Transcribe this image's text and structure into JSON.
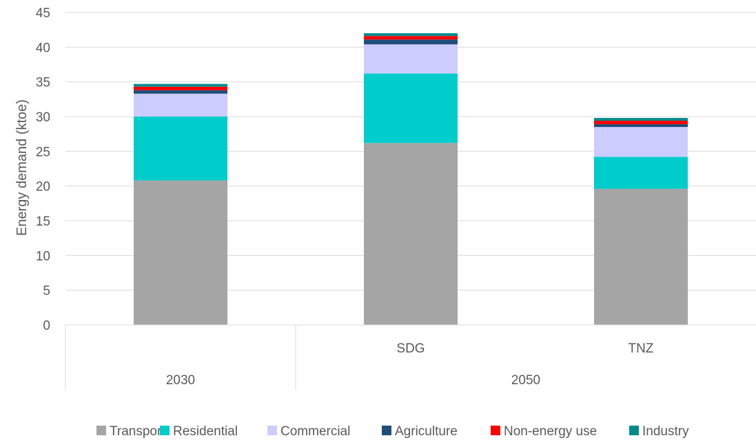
{
  "chart_data": {
    "type": "bar",
    "stacked": true,
    "ylabel": "Energy demand (ktoe)",
    "ylim": [
      0,
      45
    ],
    "yticks": [
      "0",
      "5",
      "10",
      "15",
      "20",
      "25",
      "30",
      "35",
      "40",
      "45"
    ],
    "grid": true,
    "legend_position": "bottom",
    "categories": [
      "",
      "SDG",
      "TNZ"
    ],
    "groups": [
      {
        "label": "2030",
        "span": 1
      },
      {
        "label": "2050",
        "span": 2
      }
    ],
    "series": [
      {
        "name": "Transport",
        "color": "#a5a5a5",
        "values": [
          20.8,
          26.2,
          19.6
        ]
      },
      {
        "name": "Residential",
        "color": "#00cccc",
        "values": [
          9.2,
          10.0,
          4.6
        ]
      },
      {
        "name": "Commercial",
        "color": "#ccccff",
        "values": [
          3.3,
          4.2,
          4.3
        ]
      },
      {
        "name": "Agriculture",
        "color": "#1f4e79",
        "values": [
          0.5,
          0.7,
          0.4
        ]
      },
      {
        "name": "Non-energy use",
        "color": "#ff0000",
        "values": [
          0.5,
          0.5,
          0.5
        ]
      },
      {
        "name": "Industry",
        "color": "#008b8b",
        "values": [
          0.4,
          0.4,
          0.4
        ]
      }
    ]
  }
}
